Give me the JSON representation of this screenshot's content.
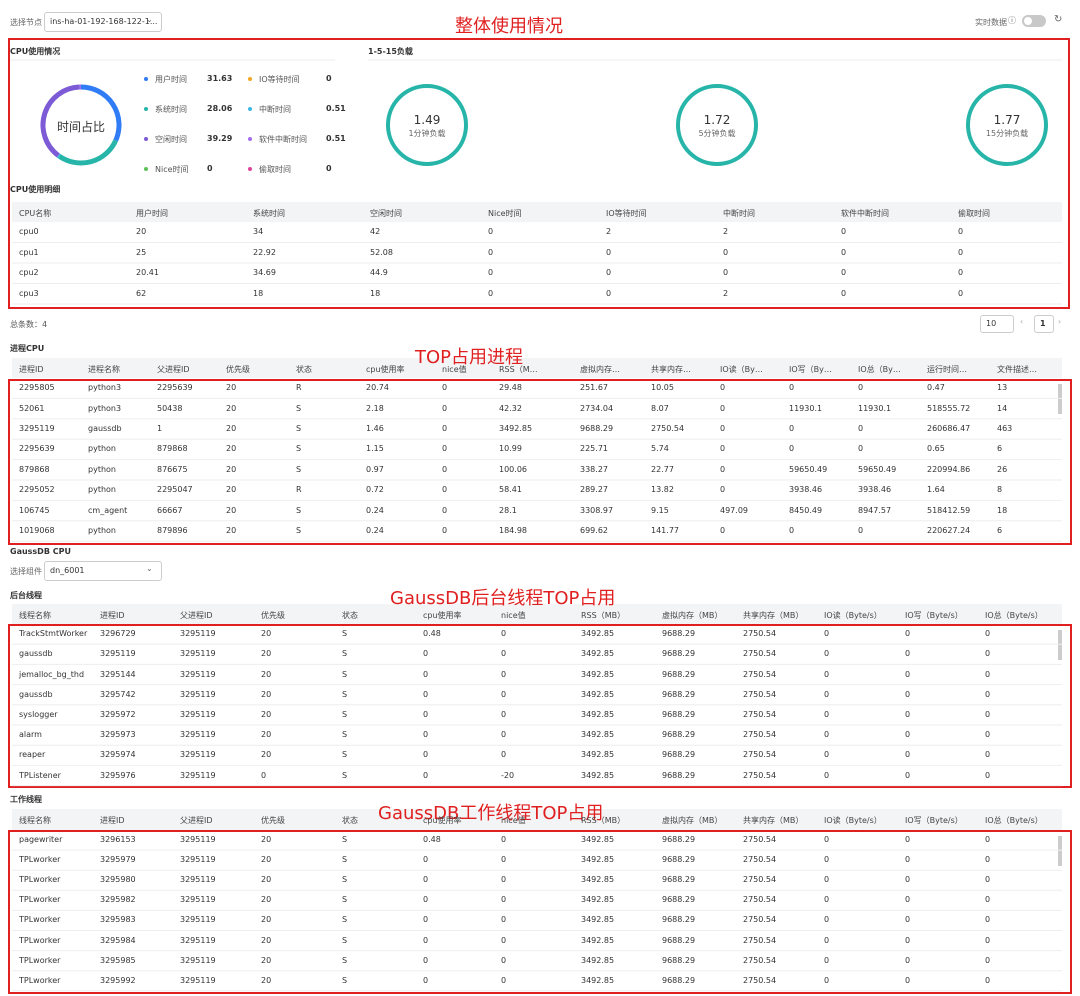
{
  "header": {
    "node_label": "选择节点",
    "node_value": "ins-ha-01-192-168-122-1...",
    "realtime_label": "实时数据"
  },
  "annotations": [
    "整体使用情况",
    "TOP占用进程",
    "GaussDB后台线程TOP占用",
    "GaussDB工作线程TOP占用"
  ],
  "cpu_usage": {
    "title": "CPU使用情况",
    "center_label": "时间占比",
    "items": [
      {
        "name": "用户时间",
        "value": 31.63,
        "color": "#2f7cf6"
      },
      {
        "name": "IO等待时间",
        "value": 0,
        "color": "#f5a623"
      },
      {
        "name": "系统时间",
        "value": 28.06,
        "color": "#26b5a8"
      },
      {
        "name": "中断时间",
        "value": 0.51,
        "color": "#3cb8e6"
      },
      {
        "name": "空闲时间",
        "value": 39.29,
        "color": "#7d5bd6"
      },
      {
        "name": "软件中断时间",
        "value": 0.51,
        "color": "#a36cf0"
      },
      {
        "name": "Nice时间",
        "value": 0,
        "color": "#5cc35a"
      },
      {
        "name": "偷取时间",
        "value": 0,
        "color": "#e0449a"
      }
    ]
  },
  "load": {
    "title": "1-5-15负载",
    "items": [
      {
        "value": 1.49,
        "label": "1分钟负载"
      },
      {
        "value": 1.72,
        "label": "5分钟负载"
      },
      {
        "value": 1.77,
        "label": "15分钟负载"
      }
    ]
  },
  "cpu_detail": {
    "title": "CPU使用明细",
    "columns": [
      "CPU名称",
      "用户时间",
      "系统时间",
      "空闲时间",
      "Nice时间",
      "IO等待时间",
      "中断时间",
      "软件中断时间",
      "偷取时间"
    ],
    "rows": [
      [
        "cpu0",
        "20",
        "34",
        "42",
        "0",
        "2",
        "2",
        "0",
        "0"
      ],
      [
        "cpu1",
        "25",
        "22.92",
        "52.08",
        "0",
        "0",
        "0",
        "0",
        "0"
      ],
      [
        "cpu2",
        "20.41",
        "34.69",
        "44.9",
        "0",
        "0",
        "0",
        "0",
        "0"
      ],
      [
        "cpu3",
        "62",
        "18",
        "18",
        "0",
        "0",
        "2",
        "0",
        "0"
      ]
    ]
  },
  "pagination": {
    "total": "总条数：4",
    "page_size": "10",
    "page": "1"
  },
  "process_cpu": {
    "title": "进程CPU",
    "columns": [
      "进程ID",
      "进程名称",
      "父进程ID",
      "优先级",
      "状态",
      "cpu使用率",
      "nice值",
      "RSS（M…",
      "虚拟内存…",
      "共享内存…",
      "IO读（By…",
      "IO写（By…",
      "IO总（By…",
      "运行时间…",
      "文件描述…"
    ],
    "rows": [
      [
        "2295805",
        "python3",
        "2295639",
        "20",
        "R",
        "20.74",
        "0",
        "29.48",
        "251.67",
        "10.05",
        "0",
        "0",
        "0",
        "0.47",
        "13"
      ],
      [
        "52061",
        "python3",
        "50438",
        "20",
        "S",
        "2.18",
        "0",
        "42.32",
        "2734.04",
        "8.07",
        "0",
        "11930.1",
        "11930.1",
        "518555.72",
        "14"
      ],
      [
        "3295119",
        "gaussdb",
        "1",
        "20",
        "S",
        "1.46",
        "0",
        "3492.85",
        "9688.29",
        "2750.54",
        "0",
        "0",
        "0",
        "260686.47",
        "463"
      ],
      [
        "2295639",
        "python",
        "879868",
        "20",
        "S",
        "1.15",
        "0",
        "10.99",
        "225.71",
        "5.74",
        "0",
        "0",
        "0",
        "0.65",
        "6"
      ],
      [
        "879868",
        "python",
        "876675",
        "20",
        "S",
        "0.97",
        "0",
        "100.06",
        "338.27",
        "22.77",
        "0",
        "59650.49",
        "59650.49",
        "220994.86",
        "26"
      ],
      [
        "2295052",
        "python",
        "2295047",
        "20",
        "R",
        "0.72",
        "0",
        "58.41",
        "289.27",
        "13.82",
        "0",
        "3938.46",
        "3938.46",
        "1.64",
        "8"
      ],
      [
        "106745",
        "cm_agent",
        "66667",
        "20",
        "S",
        "0.24",
        "0",
        "28.1",
        "3308.97",
        "9.15",
        "497.09",
        "8450.49",
        "8947.57",
        "518412.59",
        "18"
      ],
      [
        "1019068",
        "python",
        "879896",
        "20",
        "S",
        "0.24",
        "0",
        "184.98",
        "699.62",
        "141.77",
        "0",
        "0",
        "0",
        "220627.24",
        "6"
      ]
    ]
  },
  "gaussdb": {
    "title": "GaussDB CPU",
    "component_label": "选择组件",
    "component_value": "dn_6001"
  },
  "background_threads": {
    "title": "后台线程",
    "columns": [
      "线程名称",
      "进程ID",
      "父进程ID",
      "优先级",
      "状态",
      "cpu使用率",
      "nice值",
      "RSS（MB）",
      "虚拟内存（MB）",
      "共享内存（MB）",
      "IO读（Byte/s）",
      "IO写（Byte/s）",
      "IO总（Byte/s）"
    ],
    "rows": [
      [
        "TrackStmtWorker",
        "3296729",
        "3295119",
        "20",
        "S",
        "0.48",
        "0",
        "3492.85",
        "9688.29",
        "2750.54",
        "0",
        "0",
        "0"
      ],
      [
        "gaussdb",
        "3295119",
        "3295119",
        "20",
        "S",
        "0",
        "0",
        "3492.85",
        "9688.29",
        "2750.54",
        "0",
        "0",
        "0"
      ],
      [
        "jemalloc_bg_thd",
        "3295144",
        "3295119",
        "20",
        "S",
        "0",
        "0",
        "3492.85",
        "9688.29",
        "2750.54",
        "0",
        "0",
        "0"
      ],
      [
        "gaussdb",
        "3295742",
        "3295119",
        "20",
        "S",
        "0",
        "0",
        "3492.85",
        "9688.29",
        "2750.54",
        "0",
        "0",
        "0"
      ],
      [
        "syslogger",
        "3295972",
        "3295119",
        "20",
        "S",
        "0",
        "0",
        "3492.85",
        "9688.29",
        "2750.54",
        "0",
        "0",
        "0"
      ],
      [
        "alarm",
        "3295973",
        "3295119",
        "20",
        "S",
        "0",
        "0",
        "3492.85",
        "9688.29",
        "2750.54",
        "0",
        "0",
        "0"
      ],
      [
        "reaper",
        "3295974",
        "3295119",
        "20",
        "S",
        "0",
        "0",
        "3492.85",
        "9688.29",
        "2750.54",
        "0",
        "0",
        "0"
      ],
      [
        "TPListener",
        "3295976",
        "3295119",
        "0",
        "S",
        "0",
        "-20",
        "3492.85",
        "9688.29",
        "2750.54",
        "0",
        "0",
        "0"
      ]
    ]
  },
  "worker_threads": {
    "title": "工作线程",
    "columns": [
      "线程名称",
      "进程ID",
      "父进程ID",
      "优先级",
      "状态",
      "cpu使用率",
      "nice值",
      "RSS（MB）",
      "虚拟内存（MB）",
      "共享内存（MB）",
      "IO读（Byte/s）",
      "IO写（Byte/s）",
      "IO总（Byte/s）"
    ],
    "rows": [
      [
        "pagewriter",
        "3296153",
        "3295119",
        "20",
        "S",
        "0.48",
        "0",
        "3492.85",
        "9688.29",
        "2750.54",
        "0",
        "0",
        "0"
      ],
      [
        "TPLworker",
        "3295979",
        "3295119",
        "20",
        "S",
        "0",
        "0",
        "3492.85",
        "9688.29",
        "2750.54",
        "0",
        "0",
        "0"
      ],
      [
        "TPLworker",
        "3295980",
        "3295119",
        "20",
        "S",
        "0",
        "0",
        "3492.85",
        "9688.29",
        "2750.54",
        "0",
        "0",
        "0"
      ],
      [
        "TPLworker",
        "3295982",
        "3295119",
        "20",
        "S",
        "0",
        "0",
        "3492.85",
        "9688.29",
        "2750.54",
        "0",
        "0",
        "0"
      ],
      [
        "TPLworker",
        "3295983",
        "3295119",
        "20",
        "S",
        "0",
        "0",
        "3492.85",
        "9688.29",
        "2750.54",
        "0",
        "0",
        "0"
      ],
      [
        "TPLworker",
        "3295984",
        "3295119",
        "20",
        "S",
        "0",
        "0",
        "3492.85",
        "9688.29",
        "2750.54",
        "0",
        "0",
        "0"
      ],
      [
        "TPLworker",
        "3295985",
        "3295119",
        "20",
        "S",
        "0",
        "0",
        "3492.85",
        "9688.29",
        "2750.54",
        "0",
        "0",
        "0"
      ],
      [
        "TPLworker",
        "3295992",
        "3295119",
        "20",
        "S",
        "0",
        "0",
        "3492.85",
        "9688.29",
        "2750.54",
        "0",
        "0",
        "0"
      ]
    ]
  }
}
